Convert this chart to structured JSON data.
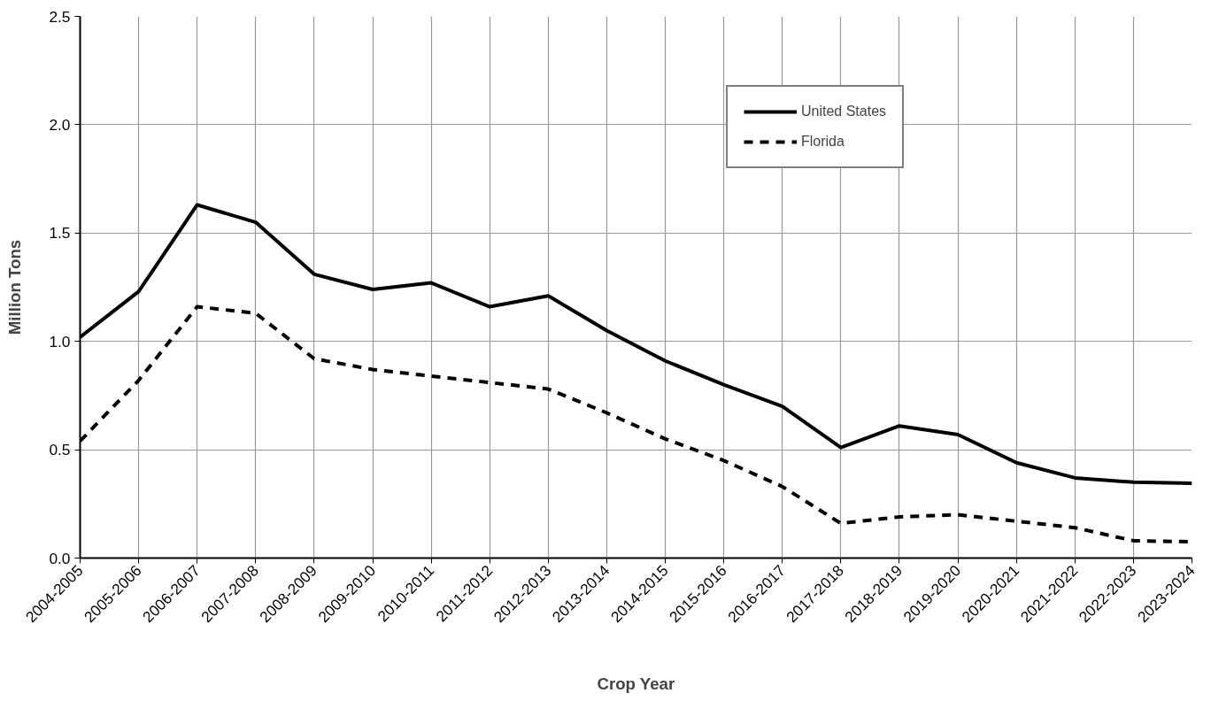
{
  "chart_data": {
    "type": "line",
    "xlabel": "Crop Year",
    "ylabel": "Million Tons",
    "categories": [
      "2004-2005",
      "2005-2006",
      "2006-2007",
      "2007-2008",
      "2008-2009",
      "2009-2010",
      "2010-2011",
      "2011-2012",
      "2012-2013",
      "2013-2014",
      "2014-2015",
      "2015-2016",
      "2016-2017",
      "2017-2018",
      "2018-2019",
      "2019-2020",
      "2020-2021",
      "2021-2022",
      "2022-2023",
      "2023-2024"
    ],
    "series": [
      {
        "name": "United States",
        "color": "#000000",
        "line_style": "solid",
        "values": [
          1.02,
          1.23,
          1.63,
          1.55,
          1.31,
          1.24,
          1.27,
          1.16,
          1.21,
          1.05,
          0.91,
          0.8,
          0.7,
          0.51,
          0.61,
          0.57,
          0.44,
          0.37,
          0.35,
          0.345
        ]
      },
      {
        "name": "Florida",
        "color": "#000000",
        "line_style": "dashed",
        "values": [
          0.54,
          0.82,
          1.16,
          1.13,
          0.92,
          0.87,
          0.84,
          0.81,
          0.78,
          0.67,
          0.55,
          0.45,
          0.33,
          0.16,
          0.19,
          0.2,
          0.17,
          0.14,
          0.08,
          0.075
        ]
      }
    ],
    "ylim": [
      0,
      2.5
    ],
    "yticks": [
      {
        "value": 0,
        "label": "0.0"
      },
      {
        "value": 0.5,
        "label": "0.5"
      },
      {
        "value": 1,
        "label": "1.0"
      },
      {
        "value": 1.5,
        "label": "1.5"
      },
      {
        "value": 2,
        "label": "2.0"
      },
      {
        "value": 2.5,
        "label": "2.5"
      }
    ],
    "grid": true,
    "legend": "top right"
  }
}
